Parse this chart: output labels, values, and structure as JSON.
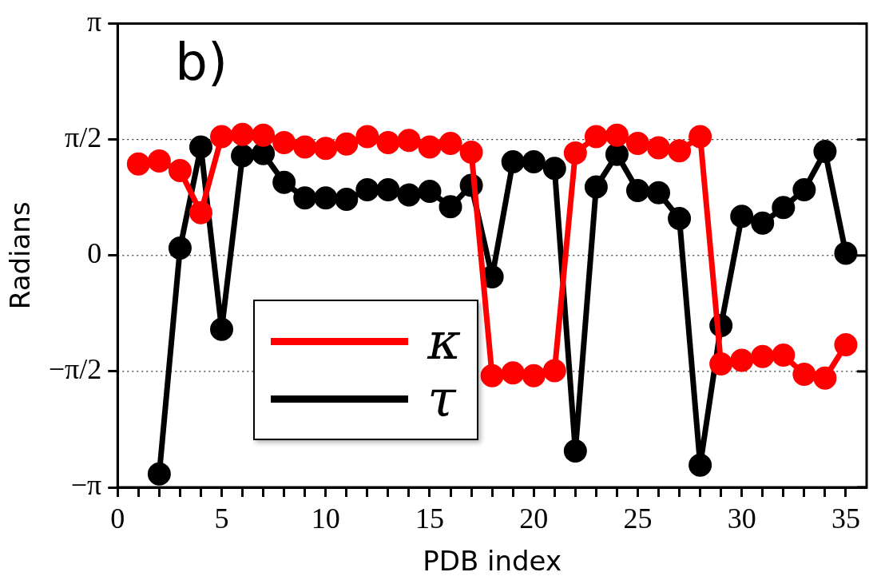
{
  "chart_data": {
    "type": "line",
    "xlabel": "PDB index",
    "ylabel": "Radians",
    "annotations": [
      "b)"
    ],
    "series": [
      {
        "name": "κ",
        "color": "#ff0000",
        "x": [
          1,
          2,
          3,
          4,
          5,
          6,
          7,
          8,
          9,
          10,
          11,
          12,
          13,
          14,
          15,
          16,
          17,
          18,
          19,
          20,
          21,
          22,
          23,
          24,
          25,
          26,
          27,
          28,
          29,
          30,
          31,
          32,
          33,
          34,
          35
        ],
        "values": [
          1.24,
          1.28,
          1.15,
          0.58,
          1.61,
          1.64,
          1.63,
          1.53,
          1.47,
          1.45,
          1.51,
          1.61,
          1.53,
          1.56,
          1.47,
          1.52,
          1.4,
          -1.63,
          -1.59,
          -1.63,
          -1.56,
          1.39,
          1.61,
          1.63,
          1.52,
          1.46,
          1.42,
          1.61,
          -1.47,
          -1.42,
          -1.37,
          -1.35,
          -1.61,
          -1.66,
          -1.21
        ]
      },
      {
        "name": "τ",
        "color": "#000000",
        "x": [
          2,
          3,
          4,
          5,
          6,
          7,
          8,
          9,
          10,
          11,
          12,
          13,
          14,
          15,
          16,
          17,
          18,
          19,
          20,
          21,
          22,
          23,
          24,
          25,
          26,
          27,
          28,
          29,
          30,
          31,
          32,
          33,
          34,
          35
        ],
        "values": [
          -2.96,
          0.1,
          1.47,
          -1.0,
          1.35,
          1.38,
          0.99,
          0.78,
          0.78,
          0.76,
          0.89,
          0.89,
          0.82,
          0.87,
          0.66,
          0.95,
          -0.29,
          1.27,
          1.27,
          1.18,
          -2.65,
          0.93,
          1.37,
          0.88,
          0.85,
          0.5,
          -2.84,
          -0.95,
          0.53,
          0.44,
          0.65,
          0.89,
          1.41,
          0.03
        ]
      }
    ],
    "xlim": [
      0,
      36
    ],
    "xticks": [
      0,
      {
        "value": 1,
        "label": null
      },
      {
        "value": 2,
        "label": null
      },
      {
        "value": 3,
        "label": null
      },
      {
        "value": 4,
        "label": null
      },
      5,
      {
        "value": 6,
        "label": null
      },
      {
        "value": 7,
        "label": null
      },
      {
        "value": 8,
        "label": null
      },
      {
        "value": 9,
        "label": null
      },
      10,
      {
        "value": 11,
        "label": null
      },
      {
        "value": 12,
        "label": null
      },
      {
        "value": 13,
        "label": null
      },
      {
        "value": 14,
        "label": null
      },
      15,
      {
        "value": 16,
        "label": null
      },
      {
        "value": 17,
        "label": null
      },
      {
        "value": 18,
        "label": null
      },
      {
        "value": 19,
        "label": null
      },
      20,
      {
        "value": 21,
        "label": null
      },
      {
        "value": 22,
        "label": null
      },
      {
        "value": 23,
        "label": null
      },
      {
        "value": 24,
        "label": null
      },
      25,
      {
        "value": 26,
        "label": null
      },
      {
        "value": 27,
        "label": null
      },
      {
        "value": 28,
        "label": null
      },
      {
        "value": 29,
        "label": null
      },
      30,
      {
        "value": 31,
        "label": null
      },
      {
        "value": 32,
        "label": null
      },
      {
        "value": 33,
        "label": null
      },
      {
        "value": 34,
        "label": null
      },
      35
    ],
    "ylim": [
      -3.1416,
      3.1416
    ],
    "yticks": [
      {
        "value": -3.1416,
        "label": "−π"
      },
      {
        "value": -1.5708,
        "label": "−π/2"
      },
      0,
      {
        "value": 1.5708,
        "label": "π/2"
      },
      {
        "value": 3.1416,
        "label": "π"
      }
    ],
    "grid": "y",
    "legend": "bottom left",
    "marker": "circle",
    "line_style": "solid"
  }
}
